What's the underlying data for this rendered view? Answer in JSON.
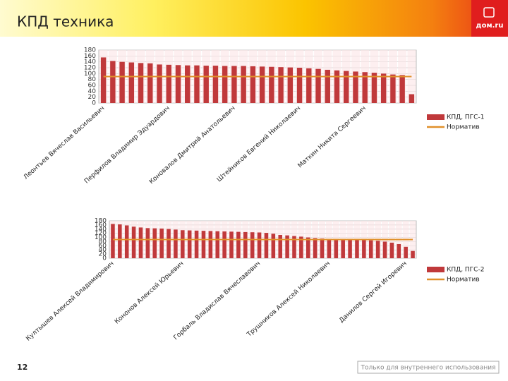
{
  "header": {
    "title": "КПД техника",
    "logo": "дом.ru"
  },
  "chart_data": [
    {
      "type": "bar",
      "categories": [
        "Леонтьев Вячеслав Васильевич",
        null,
        null,
        null,
        null,
        null,
        null,
        "Перфилов Владимир Эдуардович",
        null,
        null,
        null,
        null,
        null,
        null,
        "Коновалов Дмитрий Анатольевич",
        null,
        null,
        null,
        null,
        null,
        null,
        "Штейников Евгений Николаевич",
        null,
        null,
        null,
        null,
        null,
        null,
        "Маткин Никита Сергеевич",
        null,
        null,
        null,
        null,
        null
      ],
      "series": [
        {
          "name": "КПД, ПГС-1",
          "color": "#c0393b",
          "values": [
            155,
            143,
            140,
            138,
            136,
            135,
            131,
            130,
            129,
            128,
            128,
            127,
            127,
            126,
            126,
            126,
            125,
            124,
            123,
            122,
            121,
            120,
            118,
            116,
            113,
            111,
            109,
            107,
            105,
            103,
            100,
            97,
            95,
            30
          ]
        },
        {
          "name": "Норматив",
          "color": "#e0902a",
          "type": "line",
          "values": [
            90,
            90,
            90,
            90,
            90,
            90,
            90,
            90,
            90,
            90,
            90,
            90,
            90,
            90,
            90,
            90,
            90,
            90,
            90,
            90,
            90,
            90,
            90,
            90,
            90,
            90,
            90,
            90,
            90,
            90,
            90,
            90,
            90,
            90
          ]
        }
      ],
      "ylim": [
        0,
        180
      ],
      "yticks": [
        0,
        20,
        40,
        60,
        80,
        100,
        120,
        140,
        160,
        180
      ],
      "grid": true,
      "legend": "right"
    },
    {
      "type": "bar",
      "categories": [
        "Култышев Алексей Владимирович",
        null,
        null,
        null,
        null,
        null,
        null,
        null,
        null,
        null,
        "Кононов Алексей Юрьевич",
        null,
        null,
        null,
        null,
        null,
        null,
        null,
        null,
        null,
        null,
        "Горбаль Владислав Вячеславович",
        null,
        null,
        null,
        null,
        null,
        null,
        null,
        null,
        null,
        "Трушников Алексей Николаевич",
        null,
        null,
        null,
        null,
        null,
        null,
        null,
        null,
        null,
        null,
        "Данилов Сергей Игоревич",
        null
      ],
      "series": [
        {
          "name": "КПД, ПГС-2",
          "color": "#c0393b",
          "values": [
            165,
            163,
            158,
            152,
            148,
            145,
            144,
            143,
            141,
            138,
            135,
            134,
            133,
            132,
            131,
            130,
            129,
            128,
            127,
            126,
            125,
            124,
            122,
            118,
            112,
            110,
            107,
            104,
            100,
            97,
            95,
            93,
            92,
            91,
            90,
            89,
            88,
            86,
            84,
            80,
            75,
            68,
            55,
            35
          ]
        },
        {
          "name": "Норматив",
          "color": "#e0902a",
          "type": "line",
          "values": [
            90,
            90,
            90,
            90,
            90,
            90,
            90,
            90,
            90,
            90,
            90,
            90,
            90,
            90,
            90,
            90,
            90,
            90,
            90,
            90,
            90,
            90,
            90,
            90,
            90,
            90,
            90,
            90,
            90,
            90,
            90,
            90,
            90,
            90,
            90,
            90,
            90,
            90,
            90,
            90,
            90,
            90,
            90,
            90
          ]
        }
      ],
      "ylim": [
        0,
        180
      ],
      "yticks": [
        0,
        20,
        40,
        60,
        80,
        100,
        120,
        140,
        160,
        180
      ],
      "grid": true,
      "legend": "right"
    }
  ],
  "footer": {
    "page": "12",
    "note": "Только для внутреннего использования"
  }
}
